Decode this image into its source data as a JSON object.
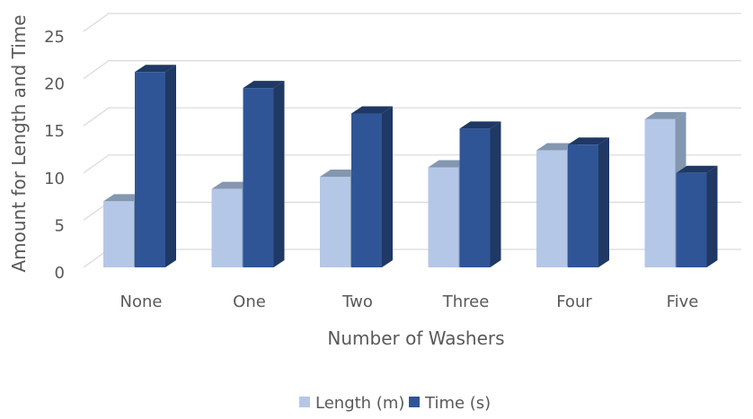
{
  "chart_data": {
    "type": "bar",
    "style": "3d-clustered-column",
    "categories": [
      "None",
      "One",
      "Two",
      "Three",
      "Four",
      "Five"
    ],
    "series": [
      {
        "name": "Length (m)",
        "values": [
          7.0,
          8.3,
          9.6,
          10.6,
          12.4,
          15.7
        ]
      },
      {
        "name": "Time (s)",
        "values": [
          20.7,
          19.0,
          16.3,
          14.7,
          13.0,
          10.0
        ]
      }
    ],
    "xlabel": "Number of Washers",
    "ylabel": "Amount for Length and Time",
    "ylim": [
      0,
      25
    ],
    "yticks": [
      0,
      5,
      10,
      15,
      20,
      25
    ],
    "grid": true,
    "legend_position": "bottom",
    "colors": {
      "Length (m)": {
        "front": "#b4c7e7",
        "top": "#8497b0",
        "side": "#8497b0"
      },
      "Time (s)": {
        "front": "#2f5597",
        "top": "#1f3864",
        "side": "#1f3864"
      }
    }
  }
}
